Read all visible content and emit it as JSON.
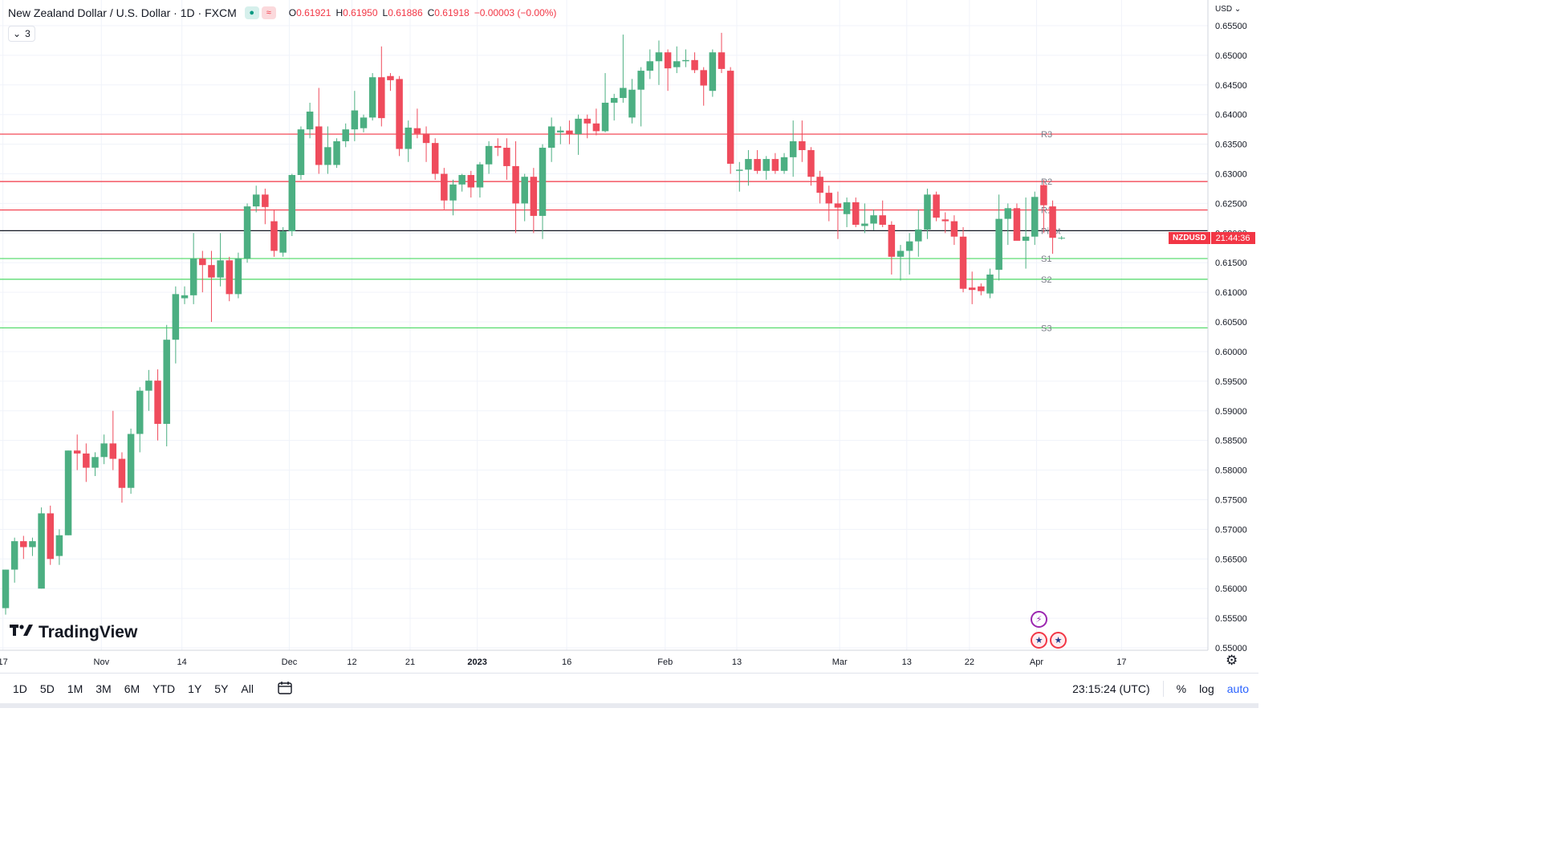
{
  "header": {
    "symbol_title": "New Zealand Dollar / U.S. Dollar · 1D · FXCM",
    "ohlc": [
      {
        "label": "O",
        "value": "0.61921"
      },
      {
        "label": "H",
        "value": "0.61950"
      },
      {
        "label": "L",
        "value": "0.61886"
      },
      {
        "label": "C",
        "value": "0.61918"
      }
    ],
    "change": "−0.00003 (−0.00%)",
    "collapse_count": "3"
  },
  "axis": {
    "currency": "USD"
  },
  "last_price": {
    "symbol": "NZDUSD",
    "countdown": "21:44:36"
  },
  "brand": "TradingView",
  "toolbar": {
    "ranges": [
      "1D",
      "5D",
      "1M",
      "3M",
      "6M",
      "YTD",
      "1Y",
      "5Y",
      "All"
    ],
    "clock": "23:15:24 (UTC)",
    "percent_label": "%",
    "log_label": "log",
    "auto_label": "auto"
  },
  "colors": {
    "up": "#4caf82",
    "down": "#ef4b5c",
    "resistance": "#f23645",
    "support": "#4cd964",
    "pivot": "#131722"
  },
  "chart_data": {
    "type": "candlestick",
    "ylim": [
      0.55,
      0.655
    ],
    "y_ticks": [
      "0.55000",
      "0.55500",
      "0.56000",
      "0.56500",
      "0.57000",
      "0.57500",
      "0.58000",
      "0.58500",
      "0.59000",
      "0.59500",
      "0.60000",
      "0.60500",
      "0.61000",
      "0.61500",
      "0.62000",
      "0.62500",
      "0.63000",
      "0.63500",
      "0.64000",
      "0.64500",
      "0.65000",
      "0.65500"
    ],
    "x_ticks": [
      {
        "label": "17",
        "bar": -0.3
      },
      {
        "label": "Nov",
        "bar": 10.7
      },
      {
        "label": "14",
        "bar": 19.7
      },
      {
        "label": "Dec",
        "bar": 31.7
      },
      {
        "label": "12",
        "bar": 38.7
      },
      {
        "label": "21",
        "bar": 45.2
      },
      {
        "label": "2023",
        "bar": 52.7
      },
      {
        "label": "16",
        "bar": 62.7
      },
      {
        "label": "Feb",
        "bar": 73.7
      },
      {
        "label": "13",
        "bar": 81.7
      },
      {
        "label": "Mar",
        "bar": 93.2
      },
      {
        "label": "13",
        "bar": 100.7
      },
      {
        "label": "22",
        "bar": 107.7
      },
      {
        "label": "Apr",
        "bar": 115.2
      },
      {
        "label": "17",
        "bar": 124.7
      }
    ],
    "levels": [
      {
        "name": "R3",
        "value": 0.6367,
        "kind": "resistance"
      },
      {
        "name": "R2",
        "value": 0.6287,
        "kind": "resistance"
      },
      {
        "name": "R1",
        "value": 0.6239,
        "kind": "resistance"
      },
      {
        "name": "Pivot",
        "value": 0.6204,
        "kind": "pivot"
      },
      {
        "name": "S1",
        "value": 0.6157,
        "kind": "support"
      },
      {
        "name": "S2",
        "value": 0.6122,
        "kind": "support"
      },
      {
        "name": "S3",
        "value": 0.604,
        "kind": "support"
      }
    ],
    "candles": [
      [
        0.5567,
        0.5632,
        0.5556,
        0.5632
      ],
      [
        0.5632,
        0.5686,
        0.561,
        0.568
      ],
      [
        0.568,
        0.5689,
        0.565,
        0.567
      ],
      [
        0.567,
        0.5686,
        0.5655,
        0.568
      ],
      [
        0.56,
        0.5737,
        0.56,
        0.5727
      ],
      [
        0.5727,
        0.574,
        0.564,
        0.565
      ],
      [
        0.5655,
        0.57,
        0.564,
        0.569
      ],
      [
        0.569,
        0.5833,
        0.569,
        0.5833
      ],
      [
        0.5833,
        0.586,
        0.58,
        0.5828
      ],
      [
        0.5828,
        0.5845,
        0.578,
        0.5804
      ],
      [
        0.5804,
        0.583,
        0.579,
        0.5822
      ],
      [
        0.5822,
        0.586,
        0.581,
        0.5845
      ],
      [
        0.5845,
        0.59,
        0.58,
        0.5819
      ],
      [
        0.5819,
        0.583,
        0.5745,
        0.577
      ],
      [
        0.577,
        0.587,
        0.576,
        0.5861
      ],
      [
        0.5861,
        0.594,
        0.583,
        0.5934
      ],
      [
        0.5934,
        0.5969,
        0.59,
        0.5951
      ],
      [
        0.5951,
        0.597,
        0.585,
        0.5878
      ],
      [
        0.5878,
        0.6045,
        0.584,
        0.602
      ],
      [
        0.602,
        0.611,
        0.598,
        0.6097
      ],
      [
        0.609,
        0.611,
        0.608,
        0.6095
      ],
      [
        0.6095,
        0.62,
        0.608,
        0.6157
      ],
      [
        0.6157,
        0.617,
        0.61,
        0.6146
      ],
      [
        0.6146,
        0.617,
        0.605,
        0.6125
      ],
      [
        0.6125,
        0.62,
        0.611,
        0.6154
      ],
      [
        0.6154,
        0.616,
        0.6085,
        0.6097
      ],
      [
        0.6097,
        0.6167,
        0.609,
        0.6157
      ],
      [
        0.6157,
        0.625,
        0.615,
        0.6245
      ],
      [
        0.6245,
        0.628,
        0.6235,
        0.6265
      ],
      [
        0.6265,
        0.6275,
        0.6215,
        0.6244
      ],
      [
        0.622,
        0.624,
        0.616,
        0.617
      ],
      [
        0.6167,
        0.621,
        0.616,
        0.6203
      ],
      [
        0.6203,
        0.63,
        0.6195,
        0.6298
      ],
      [
        0.6298,
        0.638,
        0.629,
        0.6375
      ],
      [
        0.6375,
        0.642,
        0.636,
        0.6405
      ],
      [
        0.638,
        0.6445,
        0.63,
        0.6315
      ],
      [
        0.6315,
        0.638,
        0.63,
        0.6345
      ],
      [
        0.6315,
        0.636,
        0.631,
        0.6355
      ],
      [
        0.6355,
        0.6385,
        0.6345,
        0.6375
      ],
      [
        0.6375,
        0.644,
        0.6355,
        0.6407
      ],
      [
        0.6377,
        0.64,
        0.637,
        0.6395
      ],
      [
        0.6395,
        0.647,
        0.639,
        0.6463
      ],
      [
        0.6463,
        0.6515,
        0.638,
        0.6394
      ],
      [
        0.6465,
        0.647,
        0.644,
        0.6458
      ],
      [
        0.646,
        0.6465,
        0.633,
        0.6342
      ],
      [
        0.6342,
        0.639,
        0.632,
        0.6378
      ],
      [
        0.6377,
        0.641,
        0.636,
        0.6368
      ],
      [
        0.6368,
        0.638,
        0.632,
        0.6352
      ],
      [
        0.6352,
        0.636,
        0.629,
        0.63
      ],
      [
        0.63,
        0.631,
        0.624,
        0.6255
      ],
      [
        0.6255,
        0.629,
        0.623,
        0.6282
      ],
      [
        0.6282,
        0.63,
        0.627,
        0.6298
      ],
      [
        0.6298,
        0.6305,
        0.626,
        0.6277
      ],
      [
        0.6277,
        0.632,
        0.626,
        0.6316
      ],
      [
        0.6316,
        0.6355,
        0.63,
        0.6347
      ],
      [
        0.6347,
        0.636,
        0.633,
        0.6344
      ],
      [
        0.6344,
        0.636,
        0.629,
        0.6313
      ],
      [
        0.6313,
        0.6355,
        0.62,
        0.625
      ],
      [
        0.625,
        0.63,
        0.622,
        0.6295
      ],
      [
        0.6295,
        0.631,
        0.62,
        0.6229
      ],
      [
        0.6229,
        0.635,
        0.619,
        0.6344
      ],
      [
        0.6344,
        0.6395,
        0.632,
        0.638
      ],
      [
        0.637,
        0.638,
        0.635,
        0.6373
      ],
      [
        0.6373,
        0.639,
        0.635,
        0.6367
      ],
      [
        0.6367,
        0.64,
        0.6332,
        0.6393
      ],
      [
        0.6393,
        0.64,
        0.636,
        0.6385
      ],
      [
        0.6385,
        0.641,
        0.6365,
        0.6372
      ],
      [
        0.6372,
        0.647,
        0.637,
        0.642
      ],
      [
        0.642,
        0.6435,
        0.639,
        0.6428
      ],
      [
        0.6428,
        0.6535,
        0.642,
        0.6445
      ],
      [
        0.6395,
        0.646,
        0.6385,
        0.6442
      ],
      [
        0.6442,
        0.648,
        0.638,
        0.6474
      ],
      [
        0.6474,
        0.651,
        0.646,
        0.649
      ],
      [
        0.649,
        0.6525,
        0.645,
        0.6505
      ],
      [
        0.6505,
        0.651,
        0.644,
        0.6478
      ],
      [
        0.648,
        0.6515,
        0.647,
        0.649
      ],
      [
        0.649,
        0.651,
        0.648,
        0.6492
      ],
      [
        0.6492,
        0.6505,
        0.647,
        0.6475
      ],
      [
        0.6475,
        0.648,
        0.6415,
        0.6449
      ],
      [
        0.644,
        0.651,
        0.643,
        0.6505
      ],
      [
        0.6505,
        0.6538,
        0.647,
        0.6477
      ],
      [
        0.6474,
        0.648,
        0.63,
        0.6317
      ],
      [
        0.6305,
        0.632,
        0.627,
        0.6307
      ],
      [
        0.6307,
        0.634,
        0.628,
        0.6325
      ],
      [
        0.6325,
        0.634,
        0.63,
        0.6305
      ],
      [
        0.6305,
        0.633,
        0.629,
        0.6325
      ],
      [
        0.6325,
        0.6335,
        0.63,
        0.6305
      ],
      [
        0.6305,
        0.6335,
        0.63,
        0.6328
      ],
      [
        0.6328,
        0.639,
        0.6295,
        0.6355
      ],
      [
        0.6355,
        0.639,
        0.632,
        0.634
      ],
      [
        0.634,
        0.6345,
        0.628,
        0.6295
      ],
      [
        0.6295,
        0.6305,
        0.625,
        0.6268
      ],
      [
        0.6268,
        0.628,
        0.622,
        0.625
      ],
      [
        0.625,
        0.627,
        0.619,
        0.6243
      ],
      [
        0.6232,
        0.626,
        0.621,
        0.6252
      ],
      [
        0.6252,
        0.626,
        0.621,
        0.6214
      ],
      [
        0.6212,
        0.625,
        0.62,
        0.6216
      ],
      [
        0.6216,
        0.624,
        0.6205,
        0.623
      ],
      [
        0.623,
        0.6255,
        0.621,
        0.6214
      ],
      [
        0.6214,
        0.622,
        0.613,
        0.616
      ],
      [
        0.616,
        0.618,
        0.612,
        0.617
      ],
      [
        0.617,
        0.62,
        0.613,
        0.6186
      ],
      [
        0.6186,
        0.624,
        0.616,
        0.6206
      ],
      [
        0.6206,
        0.6275,
        0.619,
        0.6265
      ],
      [
        0.6265,
        0.627,
        0.622,
        0.6226
      ],
      [
        0.6223,
        0.6235,
        0.62,
        0.622
      ],
      [
        0.622,
        0.623,
        0.618,
        0.6194
      ],
      [
        0.6194,
        0.621,
        0.61,
        0.6106
      ],
      [
        0.6108,
        0.6135,
        0.608,
        0.6104
      ],
      [
        0.611,
        0.6115,
        0.6095,
        0.6102
      ],
      [
        0.6098,
        0.614,
        0.609,
        0.613
      ],
      [
        0.6138,
        0.6265,
        0.612,
        0.6224
      ],
      [
        0.6224,
        0.625,
        0.618,
        0.6242
      ],
      [
        0.6242,
        0.625,
        0.619,
        0.6187
      ],
      [
        0.6187,
        0.626,
        0.614,
        0.6194
      ],
      [
        0.6194,
        0.627,
        0.618,
        0.6261
      ],
      [
        0.6281,
        0.629,
        0.62,
        0.6247
      ],
      [
        0.6245,
        0.6255,
        0.6165,
        0.6192
      ],
      [
        0.6192,
        0.6195,
        0.6189,
        0.6192
      ]
    ]
  }
}
